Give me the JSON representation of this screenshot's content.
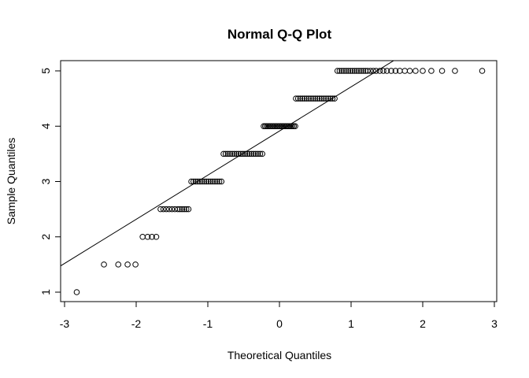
{
  "chart_data": {
    "type": "scatter",
    "title": "Normal Q-Q Plot",
    "xlabel": "Theoretical Quantiles",
    "ylabel": "Sample Quantiles",
    "xlim": [
      -3,
      3
    ],
    "ylim": [
      1,
      5
    ],
    "x_ticks": [
      "-3",
      "-2",
      "-1",
      "0",
      "1",
      "2",
      "3"
    ],
    "y_ticks": [
      "1",
      "2",
      "3",
      "4",
      "5"
    ],
    "grid": false,
    "reference_line": {
      "slope": 0.798,
      "intercept": 3.913
    },
    "series": [
      {
        "marker": "open-circle",
        "points": [
          {
            "y": 1.0,
            "x": [
              -2.83
            ]
          },
          {
            "y": 1.5,
            "x": [
              -2.45,
              -2.25,
              -2.12,
              -2.01
            ]
          },
          {
            "y": 2.0,
            "x": [
              -1.91,
              -1.84,
              -1.78,
              -1.72
            ]
          },
          {
            "y": 2.5,
            "x": [
              -1.66,
              -1.62,
              -1.58,
              -1.54,
              -1.5,
              -1.46,
              -1.42,
              -1.39,
              -1.36,
              -1.33,
              -1.3,
              -1.27
            ]
          },
          {
            "y": 3.0,
            "x": [
              -1.23,
              -1.2,
              -1.17,
              -1.14,
              -1.11,
              -1.08,
              -1.05,
              -1.02,
              -0.99,
              -0.96,
              -0.93,
              -0.9,
              -0.87,
              -0.84,
              -0.81
            ]
          },
          {
            "y": 3.5,
            "x": [
              -0.78,
              -0.75,
              -0.72,
              -0.69,
              -0.66,
              -0.63,
              -0.6,
              -0.57,
              -0.54,
              -0.51,
              -0.48,
              -0.45,
              -0.42,
              -0.39,
              -0.36,
              -0.33,
              -0.3,
              -0.27,
              -0.24
            ]
          },
          {
            "y": 4.0,
            "x": [
              -0.22,
              -0.2,
              -0.18,
              -0.16,
              -0.14,
              -0.12,
              -0.1,
              -0.08,
              -0.06,
              -0.04,
              -0.02,
              0.0,
              0.02,
              0.04,
              0.06,
              0.08,
              0.1,
              0.12,
              0.14,
              0.16,
              0.18,
              0.2,
              0.22
            ]
          },
          {
            "y": 4.5,
            "x": [
              0.23,
              0.26,
              0.29,
              0.32,
              0.35,
              0.38,
              0.41,
              0.44,
              0.47,
              0.5,
              0.53,
              0.56,
              0.59,
              0.62,
              0.65,
              0.68,
              0.71,
              0.74,
              0.77
            ]
          },
          {
            "y": 5.0,
            "x": [
              0.81,
              0.84,
              0.87,
              0.9,
              0.93,
              0.96,
              0.99,
              1.02,
              1.05,
              1.08,
              1.11,
              1.14,
              1.17,
              1.2,
              1.23,
              1.27,
              1.31,
              1.35,
              1.4,
              1.45,
              1.5,
              1.56,
              1.62,
              1.68,
              1.75,
              1.82,
              1.9,
              2.0,
              2.12,
              2.27,
              2.45,
              2.83
            ]
          }
        ]
      }
    ]
  }
}
